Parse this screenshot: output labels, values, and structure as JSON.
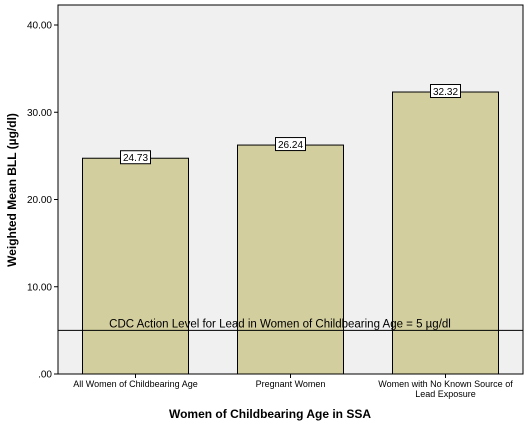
{
  "chart_data": {
    "type": "bar",
    "categories": [
      [
        "All Women of Childbearing Age"
      ],
      [
        "Pregnant Women"
      ],
      [
        "Women with No Known Source of",
        "Lead Exposure"
      ]
    ],
    "values": [
      24.73,
      26.24,
      32.32
    ],
    "data_labels": [
      "24.73",
      "26.24",
      "32.32"
    ],
    "xlabel": "Women of Childbearing Age in SSA",
    "ylabel": "Weighted Mean BLL (µg/dl)",
    "ylim": [
      0,
      40
    ],
    "yticks": [
      0,
      10,
      20,
      30,
      40
    ],
    "ytick_labels": [
      ".00",
      "10.00",
      "20.00",
      "30.00",
      "40.00"
    ],
    "grid": false,
    "reference_line": {
      "value": 5,
      "label": "CDC Action Level for Lead in Women of Childbearing Age = 5 µg/dl"
    },
    "colors": {
      "bar_fill": "#d3ce9e",
      "bar_stroke": "#000000",
      "plot_bg": "#f0f0f0"
    }
  }
}
